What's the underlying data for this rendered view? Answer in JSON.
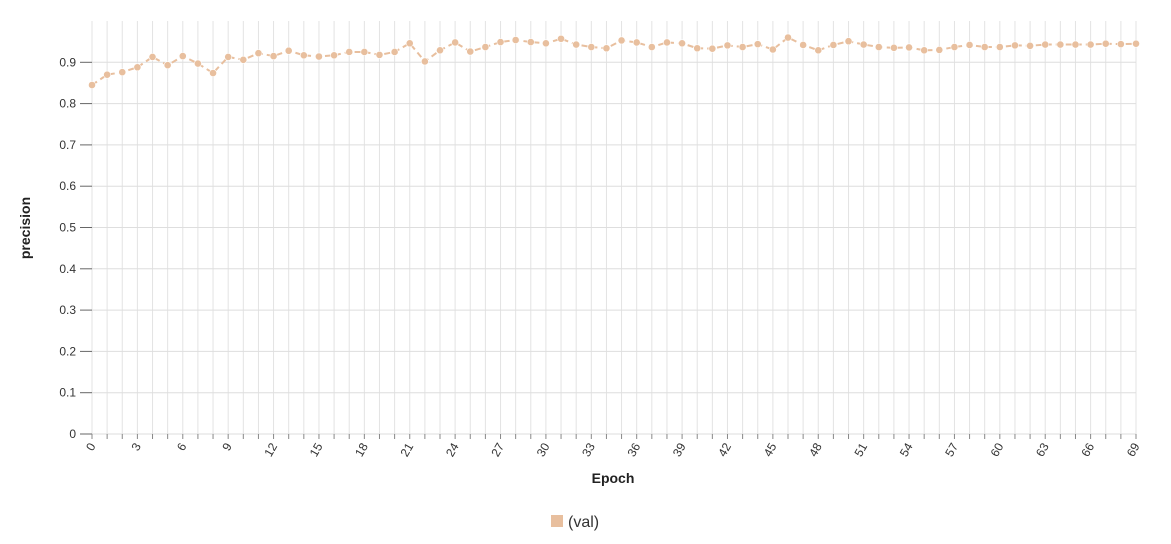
{
  "chart_data": {
    "type": "line",
    "xlabel": "Epoch",
    "ylabel": "precision",
    "xlim": [
      0,
      69
    ],
    "ylim": [
      0,
      1
    ],
    "grid": true,
    "x_ticks": [
      0,
      3,
      6,
      9,
      12,
      15,
      18,
      21,
      24,
      27,
      30,
      33,
      36,
      39,
      42,
      45,
      48,
      51,
      54,
      57,
      60,
      63,
      66,
      69
    ],
    "y_ticks": [
      0,
      0.1,
      0.2,
      0.3,
      0.4,
      0.5,
      0.6,
      0.7,
      0.8,
      0.9
    ],
    "y_tick_labels": [
      "0",
      "0.1",
      "0.2",
      "0.3",
      "0.4",
      "0.5",
      "0.6",
      "0.7",
      "0.8",
      "0.9"
    ],
    "legend_position": "bottom-center",
    "series": [
      {
        "name": "(val)",
        "color": "#e8bf9e",
        "x": [
          0,
          1,
          2,
          3,
          4,
          5,
          6,
          7,
          8,
          9,
          10,
          11,
          12,
          13,
          14,
          15,
          16,
          17,
          18,
          19,
          20,
          21,
          22,
          23,
          24,
          25,
          26,
          27,
          28,
          29,
          30,
          31,
          32,
          33,
          34,
          35,
          36,
          37,
          38,
          39,
          40,
          41,
          42,
          43,
          44,
          45,
          46,
          47,
          48,
          49,
          50,
          51,
          52,
          53,
          54,
          55,
          56,
          57,
          58,
          59,
          60,
          61,
          62,
          63,
          64,
          65,
          66,
          67,
          68,
          69
        ],
        "values": [
          0.845,
          0.87,
          0.876,
          0.888,
          0.913,
          0.893,
          0.915,
          0.897,
          0.874,
          0.913,
          0.906,
          0.922,
          0.915,
          0.928,
          0.917,
          0.914,
          0.917,
          0.925,
          0.925,
          0.918,
          0.925,
          0.946,
          0.902,
          0.929,
          0.948,
          0.926,
          0.937,
          0.949,
          0.954,
          0.949,
          0.946,
          0.957,
          0.943,
          0.937,
          0.934,
          0.953,
          0.948,
          0.937,
          0.948,
          0.946,
          0.934,
          0.933,
          0.941,
          0.937,
          0.944,
          0.931,
          0.96,
          0.942,
          0.929,
          0.942,
          0.951,
          0.943,
          0.937,
          0.935,
          0.936,
          0.929,
          0.93,
          0.937,
          0.942,
          0.937,
          0.937,
          0.941,
          0.94,
          0.943,
          0.943,
          0.943,
          0.943,
          0.945,
          0.944,
          0.945
        ]
      }
    ]
  }
}
